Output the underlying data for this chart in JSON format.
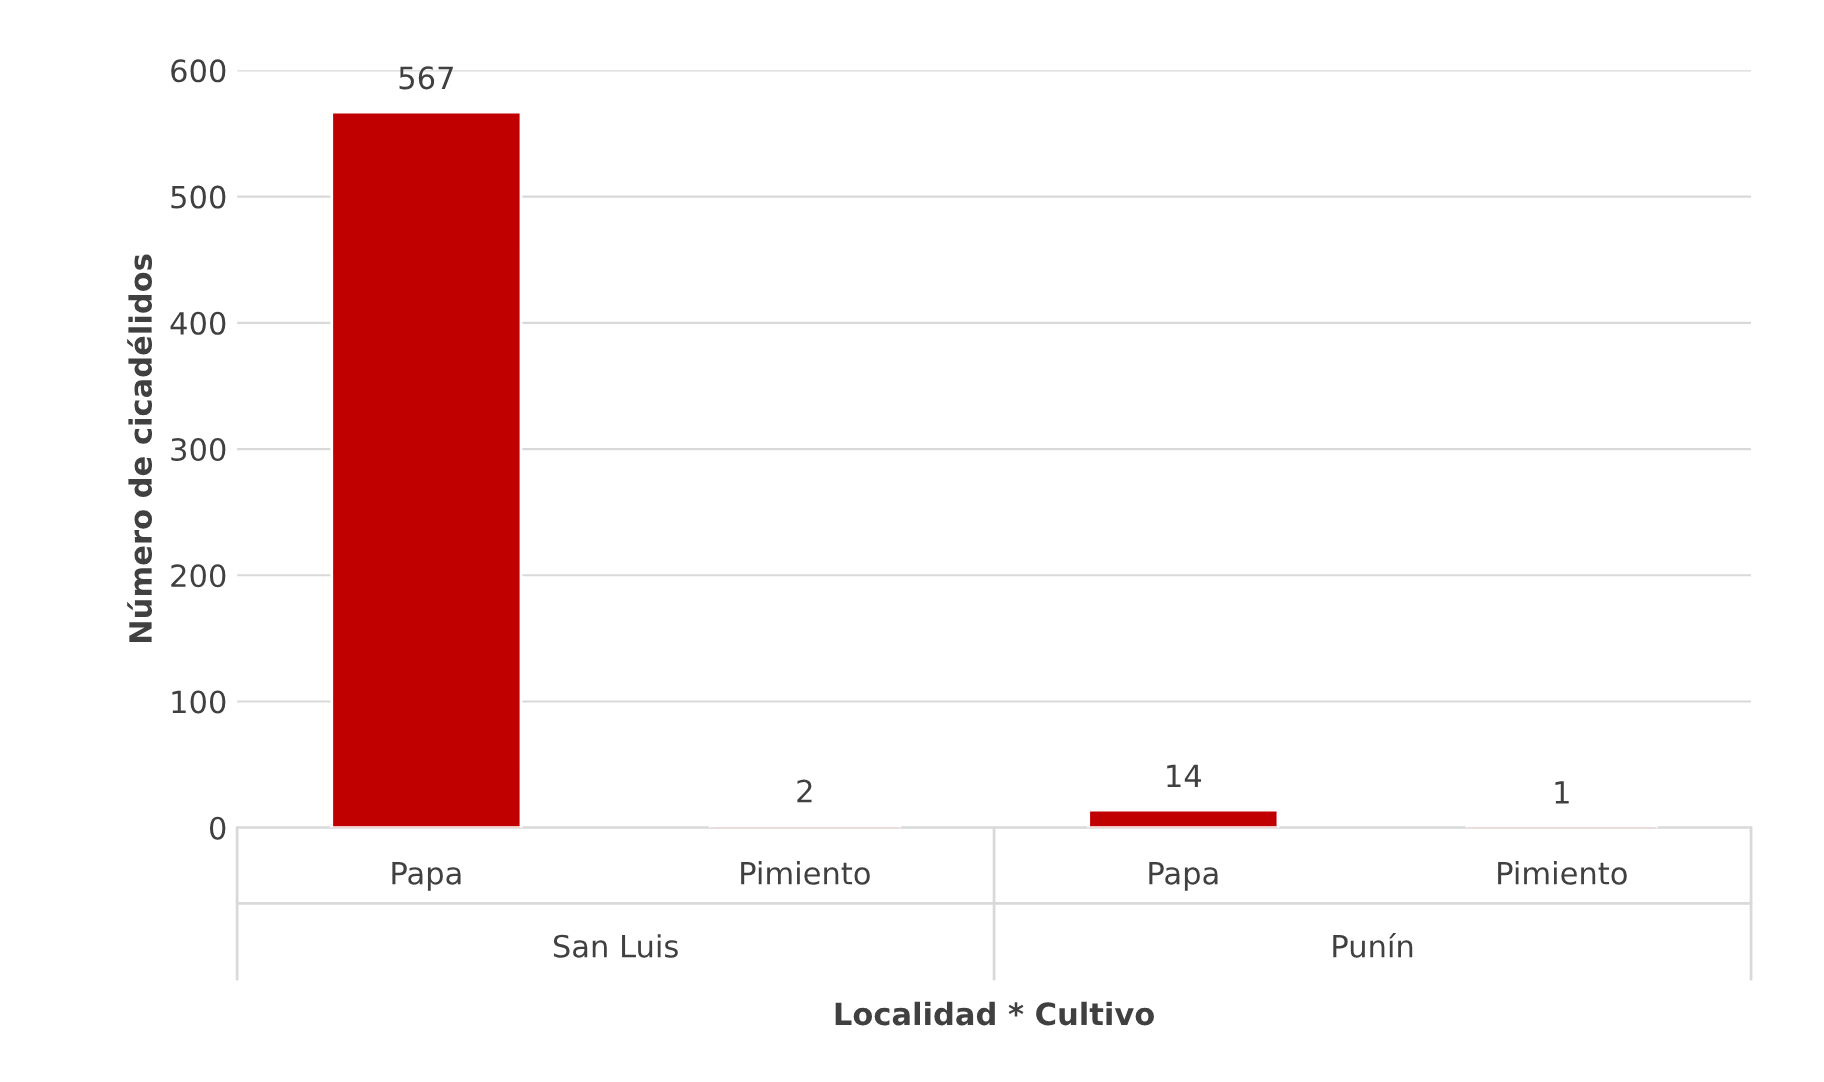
{
  "chart_data": {
    "type": "bar",
    "xlabel": "Localidad * Cultivo",
    "ylabel": "Número de cicadélidos",
    "categories": [
      "Papa",
      "Pimiento",
      "Papa",
      "Pimiento"
    ],
    "values": [
      567,
      2,
      14,
      1
    ],
    "color": "#c00000",
    "ylim": [
      0,
      600
    ],
    "yticks": [
      0,
      100,
      200,
      300,
      400,
      500,
      600
    ],
    "grid": "y",
    "data_labels": true,
    "annotations": [
      "San Luis",
      "Punín"
    ]
  }
}
